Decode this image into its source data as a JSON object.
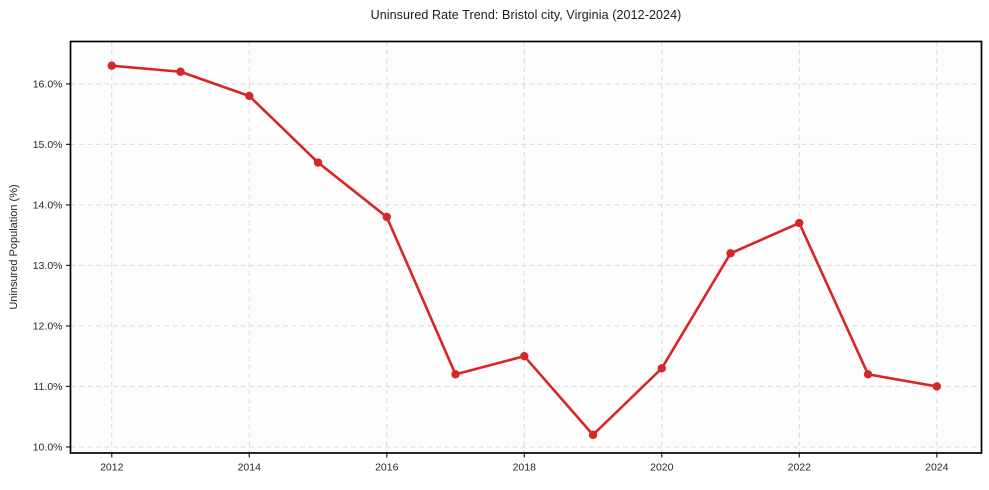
{
  "chart_data": {
    "type": "line",
    "title": "Uninsured Rate Trend: Bristol city, Virginia (2012-2024)",
    "xlabel": "",
    "ylabel": "Uninsured Population (%)",
    "x": [
      2012,
      2013,
      2014,
      2015,
      2016,
      2017,
      2018,
      2019,
      2020,
      2021,
      2022,
      2023,
      2024
    ],
    "values": [
      16.3,
      16.2,
      15.8,
      14.7,
      13.8,
      11.2,
      11.5,
      10.2,
      11.3,
      13.2,
      13.7,
      11.2,
      11.0
    ],
    "xticks": [
      2012,
      2014,
      2016,
      2018,
      2020,
      2022,
      2024
    ],
    "xtick_labels": [
      "2012",
      "2014",
      "2016",
      "2018",
      "2020",
      "2022",
      "2024"
    ],
    "yticks": [
      10,
      11,
      12,
      13,
      14,
      15,
      16
    ],
    "ytick_labels": [
      "10.0%",
      "11.0%",
      "12.0%",
      "13.0%",
      "14.0%",
      "15.0%",
      "16.0%"
    ],
    "xlim": [
      2011.4,
      2024.65
    ],
    "ylim": [
      9.9,
      16.7
    ],
    "grid": true,
    "grid_style": "dashed",
    "legend": "none",
    "line_color": "#d62728",
    "marker": "circle",
    "marker_color": "#d62728",
    "grid_color": "#d9d9d9",
    "spine_color": "#000000",
    "tick_color": "#262626",
    "plot_background": "#fdfdfd",
    "figure_background": "#ffffff"
  }
}
